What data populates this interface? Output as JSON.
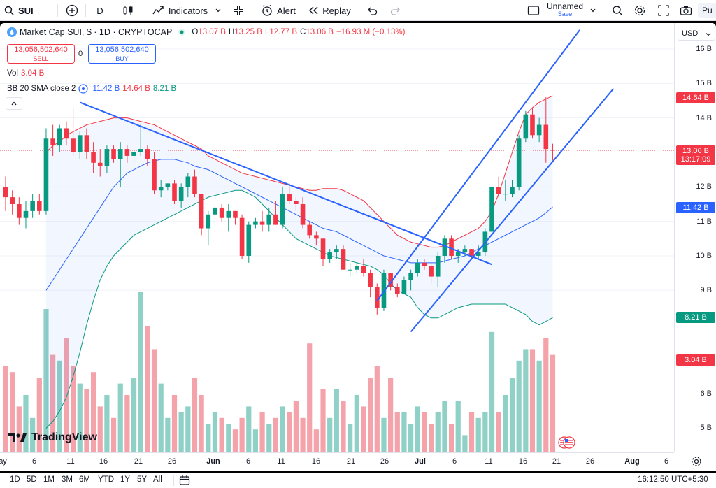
{
  "toolbar": {
    "symbol": "SUI",
    "interval": "D",
    "indicators": "Indicators",
    "alert": "Alert",
    "replay": "Replay",
    "layout_name": "Unnamed",
    "layout_status": "Save",
    "publish": "Pu"
  },
  "legend": {
    "title": "Market Cap SUI, $ · 1D · CRYPTOCAP",
    "o_label": "O",
    "o": "13.07 B",
    "h_label": "H",
    "h": "13.25 B",
    "l_label": "L",
    "l": "12.77 B",
    "c_label": "C",
    "c": "13.06 B",
    "change": "−16.93 M (−0.13%)",
    "sell_value": "13,056,502,640",
    "sell_label": "SELL",
    "spread": "0",
    "buy_value": "13,056,502,640",
    "buy_label": "BUY",
    "vol_label": "Vol",
    "vol": "3.04 B",
    "bb_label": "BB 20 SMA close 2",
    "bb_mid": "11.42 B",
    "bb_upper": "14.64 B",
    "bb_lower": "8.21 B"
  },
  "price_axis": {
    "currency": "USD",
    "ticks": [
      "16 B",
      "15 B",
      "14 B",
      "12 B",
      "11 B",
      "10 B",
      "9 B",
      "6 B",
      "5 B"
    ],
    "tag_upper": "14.64 B",
    "tag_last": "13.06 B",
    "tag_countdown": "13:17:09",
    "tag_mid": "11.42 B",
    "tag_lower": "8.21 B",
    "tag_vol": "3.04 B"
  },
  "time_axis": {
    "labels": [
      "ay",
      "6",
      "11",
      "16",
      "21",
      "26",
      "Jun",
      "6",
      "11",
      "16",
      "21",
      "26",
      "Jul",
      "6",
      "11",
      "16",
      "21",
      "26",
      "Aug",
      "6"
    ]
  },
  "bottom": {
    "ranges": [
      "1D",
      "5D",
      "1M",
      "3M",
      "6M",
      "YTD",
      "1Y",
      "5Y",
      "All"
    ],
    "clock": "16:12:50 UTC+5:30"
  },
  "branding": {
    "logo_text": "TradingView"
  },
  "colors": {
    "up": "#089981",
    "down": "#f23645",
    "trend": "#2962ff",
    "bb_upper": "#f23645",
    "bb_mid": "#2962ff",
    "bb_lower": "#089981"
  },
  "chart_data": {
    "type": "candlestick",
    "title": "Market Cap SUI, $ · 1D · CRYPTOCAP",
    "y_unit": "B",
    "candles": [
      {
        "o": 12.0,
        "h": 12.3,
        "l": 11.3,
        "c": 11.7
      },
      {
        "o": 11.7,
        "h": 11.9,
        "l": 11.2,
        "c": 11.5
      },
      {
        "o": 11.5,
        "h": 11.7,
        "l": 10.9,
        "c": 11.1
      },
      {
        "o": 11.1,
        "h": 11.6,
        "l": 10.8,
        "c": 11.3
      },
      {
        "o": 11.3,
        "h": 11.8,
        "l": 11.1,
        "c": 11.6
      },
      {
        "o": 11.6,
        "h": 11.8,
        "l": 11.2,
        "c": 11.3
      },
      {
        "o": 11.3,
        "h": 13.7,
        "l": 11.2,
        "c": 13.4
      },
      {
        "o": 13.4,
        "h": 13.8,
        "l": 12.9,
        "c": 13.2
      },
      {
        "o": 13.2,
        "h": 13.8,
        "l": 13.0,
        "c": 13.7
      },
      {
        "o": 13.7,
        "h": 13.9,
        "l": 13.2,
        "c": 13.4
      },
      {
        "o": 13.4,
        "h": 14.3,
        "l": 12.9,
        "c": 13.0
      },
      {
        "o": 13.0,
        "h": 13.6,
        "l": 12.8,
        "c": 13.5
      },
      {
        "o": 13.5,
        "h": 13.7,
        "l": 12.8,
        "c": 13.0
      },
      {
        "o": 13.0,
        "h": 13.3,
        "l": 12.4,
        "c": 12.7
      },
      {
        "o": 12.7,
        "h": 13.1,
        "l": 12.3,
        "c": 12.6
      },
      {
        "o": 12.6,
        "h": 13.2,
        "l": 12.4,
        "c": 13.1
      },
      {
        "o": 13.1,
        "h": 13.2,
        "l": 12.7,
        "c": 12.8
      },
      {
        "o": 12.8,
        "h": 13.3,
        "l": 12.0,
        "c": 13.1
      },
      {
        "o": 13.1,
        "h": 13.2,
        "l": 12.7,
        "c": 12.9
      },
      {
        "o": 12.9,
        "h": 13.1,
        "l": 12.7,
        "c": 13.0
      },
      {
        "o": 13.0,
        "h": 13.8,
        "l": 12.9,
        "c": 13.1
      },
      {
        "o": 13.1,
        "h": 13.2,
        "l": 12.6,
        "c": 12.8
      },
      {
        "o": 12.8,
        "h": 13.0,
        "l": 11.8,
        "c": 11.9
      },
      {
        "o": 11.9,
        "h": 12.2,
        "l": 11.7,
        "c": 12.0
      },
      {
        "o": 12.0,
        "h": 12.1,
        "l": 11.9,
        "c": 12.1
      },
      {
        "o": 12.1,
        "h": 12.2,
        "l": 11.5,
        "c": 11.6
      },
      {
        "o": 11.6,
        "h": 12.1,
        "l": 11.4,
        "c": 12.0
      },
      {
        "o": 12.0,
        "h": 12.4,
        "l": 11.7,
        "c": 12.3
      },
      {
        "o": 12.3,
        "h": 12.5,
        "l": 11.7,
        "c": 11.8
      },
      {
        "o": 11.8,
        "h": 11.8,
        "l": 10.6,
        "c": 10.8
      },
      {
        "o": 10.8,
        "h": 11.3,
        "l": 10.3,
        "c": 11.2
      },
      {
        "o": 11.2,
        "h": 11.5,
        "l": 10.9,
        "c": 11.4
      },
      {
        "o": 11.4,
        "h": 11.5,
        "l": 11.0,
        "c": 11.1
      },
      {
        "o": 11.1,
        "h": 11.5,
        "l": 10.7,
        "c": 11.3
      },
      {
        "o": 11.3,
        "h": 11.3,
        "l": 10.9,
        "c": 11.1
      },
      {
        "o": 11.1,
        "h": 11.2,
        "l": 9.9,
        "c": 10.0
      },
      {
        "o": 10.0,
        "h": 11.0,
        "l": 9.8,
        "c": 10.9
      },
      {
        "o": 10.9,
        "h": 11.1,
        "l": 10.8,
        "c": 11.0
      },
      {
        "o": 11.0,
        "h": 11.3,
        "l": 10.7,
        "c": 10.9
      },
      {
        "o": 10.9,
        "h": 11.4,
        "l": 10.7,
        "c": 11.2
      },
      {
        "o": 11.2,
        "h": 11.6,
        "l": 10.9,
        "c": 10.9
      },
      {
        "o": 10.9,
        "h": 12.0,
        "l": 10.8,
        "c": 11.8
      },
      {
        "o": 11.8,
        "h": 12.1,
        "l": 11.5,
        "c": 11.6
      },
      {
        "o": 11.6,
        "h": 11.7,
        "l": 11.3,
        "c": 11.5
      },
      {
        "o": 11.5,
        "h": 11.7,
        "l": 10.8,
        "c": 10.9
      },
      {
        "o": 10.9,
        "h": 11.0,
        "l": 10.5,
        "c": 10.6
      },
      {
        "o": 10.6,
        "h": 10.7,
        "l": 10.3,
        "c": 10.5
      },
      {
        "o": 10.5,
        "h": 10.5,
        "l": 9.7,
        "c": 9.9
      },
      {
        "o": 9.9,
        "h": 10.2,
        "l": 9.8,
        "c": 10.1
      },
      {
        "o": 10.1,
        "h": 10.3,
        "l": 9.9,
        "c": 10.2
      },
      {
        "o": 10.2,
        "h": 10.3,
        "l": 9.6,
        "c": 9.6
      },
      {
        "o": 9.6,
        "h": 9.8,
        "l": 9.4,
        "c": 9.6
      },
      {
        "o": 9.6,
        "h": 9.8,
        "l": 9.5,
        "c": 9.7
      },
      {
        "o": 9.7,
        "h": 9.9,
        "l": 9.4,
        "c": 9.5
      },
      {
        "o": 9.5,
        "h": 9.6,
        "l": 8.8,
        "c": 9.1
      },
      {
        "o": 9.1,
        "h": 9.2,
        "l": 8.3,
        "c": 8.5
      },
      {
        "o": 8.5,
        "h": 9.6,
        "l": 8.4,
        "c": 9.5
      },
      {
        "o": 9.5,
        "h": 9.5,
        "l": 9.0,
        "c": 9.1
      },
      {
        "o": 9.1,
        "h": 9.2,
        "l": 8.8,
        "c": 8.9
      },
      {
        "o": 8.9,
        "h": 9.4,
        "l": 8.9,
        "c": 9.3
      },
      {
        "o": 9.3,
        "h": 9.6,
        "l": 9.0,
        "c": 9.5
      },
      {
        "o": 9.5,
        "h": 9.9,
        "l": 9.4,
        "c": 9.8
      },
      {
        "o": 9.8,
        "h": 9.9,
        "l": 9.6,
        "c": 9.7
      },
      {
        "o": 9.7,
        "h": 9.8,
        "l": 9.2,
        "c": 9.4
      },
      {
        "o": 9.4,
        "h": 10.1,
        "l": 9.1,
        "c": 10.0
      },
      {
        "o": 10.0,
        "h": 10.6,
        "l": 9.8,
        "c": 10.5
      },
      {
        "o": 10.5,
        "h": 10.6,
        "l": 9.9,
        "c": 10.0
      },
      {
        "o": 10.0,
        "h": 10.2,
        "l": 9.8,
        "c": 10.1
      },
      {
        "o": 10.1,
        "h": 10.3,
        "l": 10.0,
        "c": 10.2
      },
      {
        "o": 10.2,
        "h": 10.2,
        "l": 9.9,
        "c": 10.0
      },
      {
        "o": 10.0,
        "h": 10.3,
        "l": 9.9,
        "c": 10.1
      },
      {
        "o": 10.1,
        "h": 10.8,
        "l": 10.0,
        "c": 10.7
      },
      {
        "o": 10.7,
        "h": 12.1,
        "l": 10.5,
        "c": 12.0
      },
      {
        "o": 12.0,
        "h": 12.3,
        "l": 11.7,
        "c": 11.8
      },
      {
        "o": 11.8,
        "h": 12.2,
        "l": 11.6,
        "c": 11.8
      },
      {
        "o": 11.8,
        "h": 12.2,
        "l": 11.7,
        "c": 12.0
      },
      {
        "o": 12.0,
        "h": 13.5,
        "l": 11.9,
        "c": 13.4
      },
      {
        "o": 13.4,
        "h": 14.2,
        "l": 13.3,
        "c": 14.1
      },
      {
        "o": 14.1,
        "h": 14.3,
        "l": 13.4,
        "c": 13.5
      },
      {
        "o": 13.5,
        "h": 14.0,
        "l": 13.3,
        "c": 13.8
      },
      {
        "o": 13.8,
        "h": 14.6,
        "l": 12.7,
        "c": 13.1
      },
      {
        "o": 13.07,
        "h": 13.25,
        "l": 12.77,
        "c": 13.06
      }
    ],
    "volume": [
      6.1,
      6.0,
      5.4,
      5.6,
      5.2,
      5.9,
      7.1,
      6.3,
      6.2,
      6.6,
      6.1,
      5.8,
      5.7,
      6.0,
      5.4,
      5.6,
      5.2,
      5.8,
      5.6,
      5.9,
      7.4,
      6.8,
      6.4,
      5.8,
      5.2,
      5.6,
      5.3,
      5.4,
      5.9,
      5.6,
      5.1,
      5.3,
      5.2,
      5.1,
      5.0,
      5.2,
      5.4,
      5.0,
      5.3,
      5.1,
      5.2,
      5.4,
      5.3,
      5.5,
      5.2,
      6.5,
      5.0,
      5.7,
      5.2,
      5.7,
      5.5,
      5.1,
      5.6,
      5.4,
      5.9,
      6.1,
      5.2,
      5.9,
      5.3,
      5.3,
      5.1,
      5.4,
      5.3,
      5.1,
      5.3,
      5.5,
      5.1,
      5.5,
      4.9,
      5.3,
      5.2,
      5.3,
      6.7,
      5.3,
      5.6,
      5.9,
      6.2,
      6.4,
      6.4,
      6.2,
      6.6,
      6.3
    ],
    "bb_upper": [
      13.0,
      13.2,
      13.3,
      13.5,
      13.6,
      13.7,
      13.8,
      13.85,
      13.9,
      13.95,
      14.0,
      14.0,
      14.0,
      13.95,
      13.9,
      13.85,
      13.8,
      13.7,
      13.6,
      13.5,
      13.4,
      13.3,
      13.2,
      13.1,
      12.9,
      12.8,
      12.7,
      12.6,
      12.5,
      12.4,
      12.35,
      12.3,
      12.25,
      12.2,
      12.15,
      12.1,
      12.05,
      12.0,
      11.95,
      11.9,
      11.9,
      11.95,
      11.95,
      11.95,
      11.9,
      11.8,
      11.7,
      11.6,
      11.4,
      11.2,
      11.0,
      10.8,
      10.6,
      10.5,
      10.4,
      10.35,
      10.3,
      10.25,
      10.25,
      10.3,
      10.4,
      10.5,
      10.6,
      10.7,
      10.8,
      11.0,
      11.3,
      11.8,
      12.4,
      13.0,
      13.6,
      14.1,
      14.3,
      14.45,
      14.55,
      14.64
    ],
    "bb_mid": [
      9.0,
      9.3,
      9.6,
      9.9,
      10.2,
      10.5,
      10.8,
      11.1,
      11.4,
      11.7,
      12.0,
      12.2,
      12.4,
      12.5,
      12.6,
      12.7,
      12.75,
      12.8,
      12.8,
      12.8,
      12.75,
      12.7,
      12.6,
      12.55,
      12.5,
      12.4,
      12.3,
      12.2,
      12.1,
      12.0,
      11.9,
      11.8,
      11.7,
      11.6,
      11.5,
      11.4,
      11.3,
      11.2,
      11.1,
      11.0,
      10.9,
      10.8,
      10.75,
      10.7,
      10.6,
      10.5,
      10.4,
      10.3,
      10.2,
      10.1,
      10.0,
      9.95,
      9.9,
      9.85,
      9.8,
      9.8,
      9.8,
      9.8,
      9.8,
      9.85,
      9.9,
      9.95,
      10.0,
      10.1,
      10.2,
      10.3,
      10.4,
      10.5,
      10.6,
      10.7,
      10.8,
      10.9,
      11.0,
      11.1,
      11.25,
      11.42
    ],
    "bb_lower": [
      5.0,
      5.2,
      5.5,
      5.9,
      6.5,
      7.2,
      8.0,
      8.7,
      9.3,
      9.7,
      10.0,
      10.2,
      10.4,
      10.6,
      10.7,
      10.8,
      10.9,
      11.0,
      11.1,
      11.2,
      11.3,
      11.4,
      11.5,
      11.6,
      11.7,
      11.75,
      11.8,
      11.85,
      11.9,
      11.9,
      11.8,
      11.7,
      11.5,
      11.3,
      11.1,
      10.9,
      10.7,
      10.5,
      10.4,
      10.3,
      10.2,
      10.1,
      10.0,
      9.95,
      9.9,
      9.85,
      9.8,
      9.75,
      9.7,
      9.6,
      9.45,
      9.2,
      9.0,
      8.9,
      8.8,
      8.5,
      8.3,
      8.2,
      8.2,
      8.3,
      8.4,
      8.5,
      8.55,
      8.6,
      8.6,
      8.6,
      8.6,
      8.6,
      8.6,
      8.5,
      8.4,
      8.3,
      8.1,
      8.0,
      8.1,
      8.21
    ],
    "ylim": [
      4.5,
      16.5
    ]
  }
}
